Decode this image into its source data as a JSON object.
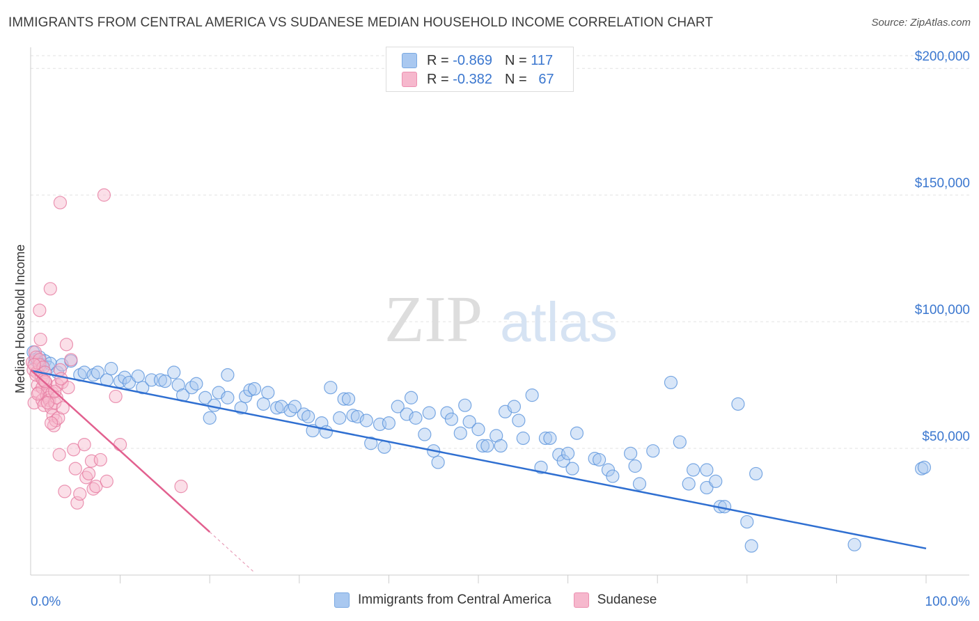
{
  "title": "IMMIGRANTS FROM CENTRAL AMERICA VS SUDANESE MEDIAN HOUSEHOLD INCOME CORRELATION CHART",
  "source": "Source: ZipAtlas.com",
  "watermark": {
    "zip": "ZIP",
    "atlas": "atlas"
  },
  "legend_stats": [
    {
      "r_label": "R =",
      "r_value": "-0.869",
      "n_label": "N =",
      "n_value": "117",
      "color": "#a9c8f0"
    },
    {
      "r_label": "R =",
      "r_value": "-0.382",
      "n_label": "N =",
      "n_value": "67",
      "color": "#f6b8cd"
    }
  ],
  "legend_series": [
    {
      "name": "Immigrants from Central America",
      "color": "#a9c8f0"
    },
    {
      "name": "Sudanese",
      "color": "#f6b8cd"
    }
  ],
  "chart_data": {
    "type": "scatter",
    "ylabel": "Median Household Income",
    "x_tick_labels": [
      "0.0%",
      "100.0%"
    ],
    "y_tick_labels": [
      "$50,000",
      "$100,000",
      "$150,000",
      "$200,000"
    ],
    "y_ticks": [
      50000,
      100000,
      150000,
      200000
    ],
    "xlim": [
      0,
      100
    ],
    "ylim": [
      0,
      205000
    ],
    "grid": true,
    "legend": "top-center",
    "series": [
      {
        "name": "Immigrants from Central America",
        "color": "#5a93dc",
        "fill": "#a9c8f0",
        "trend": {
          "x": [
            0,
            100
          ],
          "y": [
            80700,
            10500
          ]
        },
        "points": [
          [
            0.3,
            88000
          ],
          [
            0.5,
            85000
          ],
          [
            0.8,
            84000
          ],
          [
            1.0,
            86000
          ],
          [
            1.3,
            83000
          ],
          [
            1.6,
            84500
          ],
          [
            2.0,
            82000
          ],
          [
            2.2,
            83500
          ],
          [
            3.0,
            80000
          ],
          [
            3.5,
            83000
          ],
          [
            4.5,
            84500
          ],
          [
            5.5,
            79000
          ],
          [
            6.0,
            80000
          ],
          [
            7.0,
            79000
          ],
          [
            7.5,
            80000
          ],
          [
            8.5,
            77000
          ],
          [
            9.0,
            81500
          ],
          [
            10.0,
            76500
          ],
          [
            10.5,
            78000
          ],
          [
            11.0,
            76000
          ],
          [
            12.0,
            78500
          ],
          [
            12.5,
            74000
          ],
          [
            13.5,
            77000
          ],
          [
            14.5,
            77000
          ],
          [
            15.0,
            76500
          ],
          [
            16.0,
            80000
          ],
          [
            16.5,
            75000
          ],
          [
            17.0,
            71000
          ],
          [
            18.0,
            74000
          ],
          [
            18.5,
            75500
          ],
          [
            19.5,
            70000
          ],
          [
            20.0,
            62000
          ],
          [
            20.5,
            67000
          ],
          [
            21.0,
            72000
          ],
          [
            22.0,
            79000
          ],
          [
            22.0,
            70000
          ],
          [
            23.5,
            66000
          ],
          [
            24.0,
            70500
          ],
          [
            24.5,
            73000
          ],
          [
            25.0,
            73500
          ],
          [
            26.0,
            67500
          ],
          [
            26.5,
            72000
          ],
          [
            27.5,
            66000
          ],
          [
            28.0,
            66500
          ],
          [
            29.0,
            65000
          ],
          [
            29.5,
            66500
          ],
          [
            30.5,
            63500
          ],
          [
            31.0,
            62500
          ],
          [
            31.5,
            57000
          ],
          [
            32.5,
            60000
          ],
          [
            33.0,
            56500
          ],
          [
            33.5,
            74000
          ],
          [
            34.5,
            62000
          ],
          [
            35.0,
            69500
          ],
          [
            35.5,
            69500
          ],
          [
            36.0,
            63000
          ],
          [
            36.5,
            62500
          ],
          [
            37.5,
            61000
          ],
          [
            38.0,
            52000
          ],
          [
            39.0,
            59500
          ],
          [
            39.5,
            50500
          ],
          [
            40.0,
            60000
          ],
          [
            41.0,
            66500
          ],
          [
            42.0,
            63500
          ],
          [
            42.5,
            70000
          ],
          [
            43.0,
            62000
          ],
          [
            44.0,
            55500
          ],
          [
            44.5,
            64000
          ],
          [
            45.0,
            49000
          ],
          [
            45.5,
            44500
          ],
          [
            46.5,
            64000
          ],
          [
            47.0,
            61500
          ],
          [
            48.0,
            56000
          ],
          [
            48.5,
            67000
          ],
          [
            49.0,
            60500
          ],
          [
            50.0,
            57500
          ],
          [
            50.5,
            51000
          ],
          [
            51.0,
            51000
          ],
          [
            52.0,
            55000
          ],
          [
            52.5,
            51000
          ],
          [
            53.0,
            64500
          ],
          [
            54.0,
            66500
          ],
          [
            54.5,
            61000
          ],
          [
            55.0,
            54000
          ],
          [
            56.0,
            71000
          ],
          [
            57.0,
            42500
          ],
          [
            57.5,
            54000
          ],
          [
            58.0,
            54000
          ],
          [
            59.0,
            47500
          ],
          [
            59.5,
            45000
          ],
          [
            60.0,
            48000
          ],
          [
            60.5,
            42000
          ],
          [
            61.0,
            56000
          ],
          [
            63.0,
            46000
          ],
          [
            63.5,
            45500
          ],
          [
            64.5,
            41500
          ],
          [
            65.0,
            39000
          ],
          [
            67.0,
            48000
          ],
          [
            67.5,
            43000
          ],
          [
            68.0,
            36000
          ],
          [
            69.5,
            49000
          ],
          [
            71.5,
            76000
          ],
          [
            72.5,
            52500
          ],
          [
            73.5,
            36000
          ],
          [
            74.0,
            41500
          ],
          [
            75.5,
            34500
          ],
          [
            75.5,
            41500
          ],
          [
            76.5,
            37000
          ],
          [
            77.0,
            27000
          ],
          [
            77.5,
            27000
          ],
          [
            79.0,
            67500
          ],
          [
            80.0,
            21000
          ],
          [
            80.5,
            11500
          ],
          [
            81.0,
            40000
          ],
          [
            92.0,
            12000
          ],
          [
            99.5,
            42000
          ],
          [
            99.8,
            42500
          ]
        ]
      },
      {
        "name": "Sudanese",
        "color": "#e67aa0",
        "fill": "#f6b8cd",
        "trend": {
          "x": [
            0,
            20
          ],
          "y": [
            81000,
            17000
          ],
          "dash_x": [
            20,
            25
          ],
          "dash_y": [
            17000,
            1000
          ]
        },
        "points": [
          [
            0.2,
            84000
          ],
          [
            0.3,
            81000
          ],
          [
            0.4,
            68000
          ],
          [
            0.5,
            88000
          ],
          [
            0.6,
            86000
          ],
          [
            0.7,
            80000
          ],
          [
            0.8,
            75000
          ],
          [
            0.9,
            72000
          ],
          [
            1.0,
            85000
          ],
          [
            1.0,
            83000
          ],
          [
            1.1,
            93000
          ],
          [
            1.2,
            78000
          ],
          [
            1.3,
            74000
          ],
          [
            1.3,
            69000
          ],
          [
            1.4,
            82000
          ],
          [
            1.5,
            67000
          ],
          [
            1.6,
            80000
          ],
          [
            1.7,
            76000
          ],
          [
            1.8,
            71000
          ],
          [
            1.9,
            73000
          ],
          [
            2.0,
            70000
          ],
          [
            2.1,
            69000
          ],
          [
            2.2,
            113000
          ],
          [
            2.3,
            66000
          ],
          [
            2.4,
            72000
          ],
          [
            2.5,
            63000
          ],
          [
            2.6,
            59000
          ],
          [
            2.7,
            68000
          ],
          [
            2.8,
            61000
          ],
          [
            2.9,
            70000
          ],
          [
            3.0,
            75000
          ],
          [
            3.1,
            62000
          ],
          [
            3.2,
            47500
          ],
          [
            3.3,
            81000
          ],
          [
            3.5,
            76000
          ],
          [
            3.6,
            66000
          ],
          [
            3.8,
            33000
          ],
          [
            4.0,
            91000
          ],
          [
            4.2,
            74000
          ],
          [
            4.5,
            85000
          ],
          [
            4.8,
            49500
          ],
          [
            5.0,
            42000
          ],
          [
            5.2,
            28500
          ],
          [
            1.0,
            104500
          ],
          [
            3.3,
            147000
          ],
          [
            5.5,
            32000
          ],
          [
            6.0,
            51500
          ],
          [
            6.2,
            38500
          ],
          [
            6.5,
            40000
          ],
          [
            6.8,
            45000
          ],
          [
            7.0,
            34000
          ],
          [
            7.3,
            35000
          ],
          [
            7.8,
            45500
          ],
          [
            8.2,
            150000
          ],
          [
            8.5,
            37000
          ],
          [
            9.5,
            70500
          ],
          [
            10.0,
            51500
          ],
          [
            0.6,
            79000
          ],
          [
            1.4,
            77000
          ],
          [
            2.3,
            60000
          ],
          [
            0.8,
            71500
          ],
          [
            1.9,
            68000
          ],
          [
            3.4,
            77500
          ],
          [
            0.4,
            83000
          ],
          [
            16.8,
            35000
          ],
          [
            2.7,
            72500
          ],
          [
            1.6,
            76500
          ]
        ]
      }
    ]
  }
}
